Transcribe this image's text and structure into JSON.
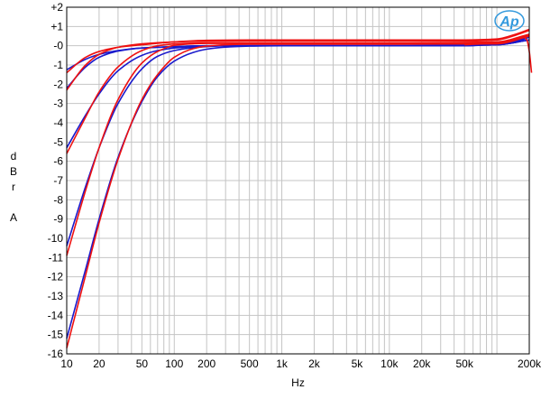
{
  "chart_data": {
    "type": "line",
    "title": "",
    "xlabel": "Hz",
    "ylabel": [
      "d",
      "B",
      "r",
      "",
      "A"
    ],
    "x_scale": "log",
    "xlim": [
      10,
      200000
    ],
    "ylim": [
      -16,
      2
    ],
    "grid": true,
    "x_ticks": [
      10,
      20,
      50,
      100,
      200,
      500,
      1000,
      2000,
      5000,
      10000,
      20000,
      50000,
      200000
    ],
    "x_tick_labels": [
      "10",
      "20",
      "50",
      "100",
      "200",
      "500",
      "1k",
      "2k",
      "5k",
      "10k",
      "20k",
      "50k",
      "200k"
    ],
    "y_ticks": [
      2,
      1,
      0,
      -1,
      -2,
      -3,
      -4,
      -5,
      -6,
      -7,
      -8,
      -9,
      -10,
      -11,
      -12,
      -13,
      -14,
      -15,
      -16
    ],
    "y_tick_labels": [
      "+2",
      "+1",
      "-0",
      "-1",
      "-2",
      "-3",
      "-4",
      "-5",
      "-6",
      "-7",
      "-8",
      "-9",
      "-10",
      "-11",
      "-12",
      "-13",
      "-14",
      "-15",
      "-16"
    ],
    "colors": {
      "red": "#ee1111",
      "blue": "#1a1acc",
      "grid": "#c4c4c4",
      "logo": "#3399dd"
    },
    "series": [
      {
        "color": "blue",
        "x": [
          10,
          15,
          20,
          30,
          50,
          100,
          200,
          500,
          1000,
          10000,
          50000,
          100000,
          150000,
          200000
        ],
        "y": [
          -1.25,
          -0.7,
          -0.45,
          -0.25,
          -0.12,
          -0.05,
          0,
          0,
          0,
          0,
          0,
          0.1,
          0.25,
          0.5
        ]
      },
      {
        "color": "red",
        "x": [
          10,
          15,
          20,
          30,
          50,
          100,
          200,
          500,
          1000,
          10000,
          50000,
          100000,
          150000,
          200000
        ],
        "y": [
          -1.4,
          -0.6,
          -0.3,
          -0.08,
          0.05,
          0.2,
          0.28,
          0.3,
          0.3,
          0.3,
          0.3,
          0.35,
          0.6,
          0.85
        ]
      },
      {
        "color": "blue",
        "x": [
          10,
          15,
          20,
          30,
          50,
          100,
          200,
          500,
          1000,
          10000,
          50000,
          100000,
          150000,
          200000
        ],
        "y": [
          -2.2,
          -1.1,
          -0.6,
          -0.28,
          -0.12,
          -0.05,
          0,
          0,
          0,
          0,
          0,
          0.1,
          0.2,
          0.45
        ]
      },
      {
        "color": "red",
        "x": [
          10,
          15,
          20,
          30,
          50,
          100,
          200,
          500,
          1000,
          10000,
          50000,
          100000,
          150000,
          200000
        ],
        "y": [
          -2.3,
          -1.0,
          -0.45,
          -0.08,
          0.1,
          0.2,
          0.24,
          0.25,
          0.25,
          0.25,
          0.25,
          0.3,
          0.55,
          0.8
        ]
      },
      {
        "color": "blue",
        "x": [
          10,
          15,
          20,
          30,
          50,
          70,
          100,
          150,
          200,
          300,
          500,
          1000,
          10000,
          100000,
          200000
        ],
        "y": [
          -5.3,
          -3.6,
          -2.5,
          -1.3,
          -0.5,
          -0.25,
          -0.12,
          -0.05,
          -0.02,
          0,
          0,
          0,
          0,
          0.05,
          0.3
        ]
      },
      {
        "color": "red",
        "x": [
          10,
          15,
          20,
          30,
          50,
          70,
          100,
          150,
          200,
          300,
          500,
          1000,
          10000,
          100000,
          200000
        ],
        "y": [
          -5.6,
          -3.7,
          -2.4,
          -1.1,
          -0.25,
          0,
          0.1,
          0.14,
          0.15,
          0.15,
          0.15,
          0.15,
          0.15,
          0.2,
          0.6
        ]
      },
      {
        "color": "blue",
        "x": [
          10,
          15,
          20,
          30,
          50,
          70,
          100,
          150,
          200,
          300,
          500,
          1000,
          10000,
          100000,
          200000
        ],
        "y": [
          -10.4,
          -7.3,
          -5.3,
          -3.0,
          -1.2,
          -0.55,
          -0.25,
          -0.1,
          -0.05,
          0,
          0,
          0,
          0,
          0.05,
          0.3
        ]
      },
      {
        "color": "red",
        "x": [
          10,
          15,
          20,
          30,
          50,
          70,
          100,
          150,
          200,
          300,
          500,
          1000,
          10000,
          100000,
          200000
        ],
        "y": [
          -10.9,
          -7.5,
          -5.3,
          -2.8,
          -0.9,
          -0.3,
          0.02,
          0.1,
          0.12,
          0.12,
          0.12,
          0.12,
          0.12,
          0.15,
          0.55
        ]
      },
      {
        "color": "blue",
        "x": [
          10,
          15,
          20,
          30,
          50,
          70,
          100,
          150,
          200,
          300,
          500,
          1000,
          10000,
          100000,
          200000
        ],
        "y": [
          -15.2,
          -11.6,
          -9.0,
          -5.8,
          -2.9,
          -1.6,
          -0.8,
          -0.35,
          -0.18,
          -0.07,
          -0.02,
          0,
          0,
          0.05,
          0.3
        ]
      },
      {
        "color": "red",
        "x": [
          10,
          15,
          20,
          30,
          50,
          70,
          100,
          150,
          200,
          300,
          500,
          1000,
          10000,
          100000,
          200000
        ],
        "y": [
          -15.7,
          -11.9,
          -9.2,
          -5.9,
          -2.8,
          -1.5,
          -0.6,
          -0.15,
          -0.02,
          0.05,
          0.08,
          0.08,
          0.08,
          0.1,
          0.5
        ]
      },
      {
        "color": "red",
        "x": [
          50000,
          100000,
          150000,
          175000,
          190000,
          200000,
          210000
        ],
        "y": [
          0.05,
          0.15,
          0.35,
          0.45,
          0.3,
          -0.3,
          -1.4
        ]
      }
    ]
  },
  "logo": {
    "text": "Ap"
  }
}
